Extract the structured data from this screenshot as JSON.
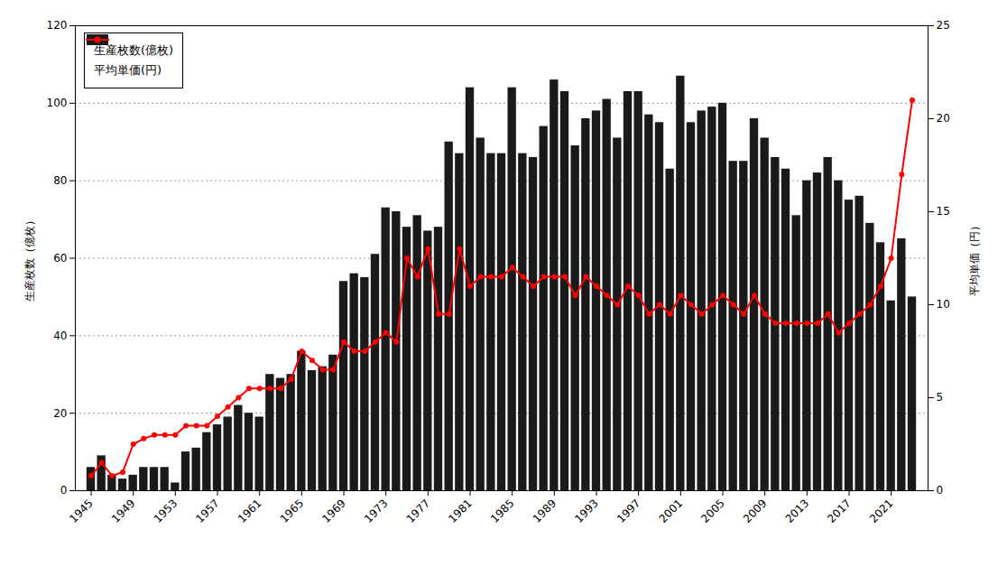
{
  "chart_data": {
    "type": "bar",
    "x": [
      1945,
      1946,
      1947,
      1948,
      1949,
      1950,
      1951,
      1952,
      1953,
      1954,
      1955,
      1956,
      1957,
      1958,
      1959,
      1960,
      1961,
      1962,
      1963,
      1964,
      1965,
      1966,
      1967,
      1968,
      1969,
      1970,
      1971,
      1972,
      1973,
      1974,
      1975,
      1976,
      1977,
      1978,
      1979,
      1980,
      1981,
      1982,
      1983,
      1984,
      1985,
      1986,
      1987,
      1988,
      1989,
      1990,
      1991,
      1992,
      1993,
      1994,
      1995,
      1996,
      1997,
      1998,
      1999,
      2000,
      2001,
      2002,
      2003,
      2004,
      2005,
      2006,
      2007,
      2008,
      2009,
      2010,
      2011,
      2012,
      2013,
      2014,
      2015,
      2016,
      2017,
      2018,
      2019,
      2020,
      2021,
      2022,
      2023
    ],
    "series": [
      {
        "name": "生産枚数(億枚)",
        "type": "bar",
        "color": "#1a1a1a",
        "values": [
          6,
          9,
          4,
          3,
          4,
          6,
          6,
          6,
          2,
          10,
          11,
          15,
          17,
          19,
          22,
          20,
          19,
          30,
          29,
          30,
          36,
          31,
          32,
          35,
          54,
          56,
          55,
          61,
          73,
          72,
          68,
          71,
          67,
          68,
          90,
          87,
          104,
          91,
          87,
          87,
          104,
          87,
          86,
          94,
          106,
          103,
          89,
          96,
          98,
          101,
          91,
          103,
          103,
          97,
          95,
          83,
          107,
          95,
          98,
          99,
          100,
          85,
          85,
          96,
          91,
          86,
          83,
          71,
          80,
          82,
          86,
          80,
          75,
          76,
          69,
          64,
          49,
          65,
          50
        ]
      },
      {
        "name": "平均単価(円)",
        "type": "line",
        "axis": "y2",
        "color": "#ff0000",
        "marker": "circle",
        "values": [
          0.8,
          1.5,
          0.8,
          1.0,
          2.5,
          2.8,
          3.0,
          3.0,
          3.0,
          3.5,
          3.5,
          3.5,
          4.0,
          4.5,
          5.0,
          5.5,
          5.5,
          5.5,
          5.5,
          6.0,
          7.5,
          7.0,
          6.5,
          6.5,
          8.0,
          7.5,
          7.5,
          8.0,
          8.5,
          8.0,
          12.5,
          11.5,
          13.0,
          9.5,
          9.5,
          13.0,
          11.0,
          11.5,
          11.5,
          11.5,
          12.0,
          11.5,
          11.0,
          11.5,
          11.5,
          11.5,
          10.5,
          11.5,
          11.0,
          10.5,
          10.0,
          11.0,
          10.5,
          9.5,
          10.0,
          9.5,
          10.5,
          10.0,
          9.5,
          10.0,
          10.5,
          10.0,
          9.5,
          10.5,
          9.5,
          9.0,
          9.0,
          9.0,
          9.0,
          9.0,
          9.5,
          8.5,
          9.0,
          9.5,
          10.0,
          11.0,
          12.5,
          17.0,
          21.0
        ]
      }
    ],
    "ylabel": "生産枚数（億枚）",
    "y2label": "平均単価（円）",
    "xlim": [
      1943.5,
      2024.5
    ],
    "xticks": [
      1945,
      1949,
      1953,
      1957,
      1961,
      1965,
      1969,
      1973,
      1977,
      1981,
      1985,
      1989,
      1993,
      1997,
      2001,
      2005,
      2009,
      2013,
      2017,
      2021
    ],
    "ylim": [
      0,
      120
    ],
    "yticks": [
      0,
      20,
      40,
      60,
      80,
      100,
      120
    ],
    "y2lim": [
      0,
      25
    ],
    "y2ticks": [
      0,
      5,
      10,
      15,
      20,
      25
    ],
    "grid": true,
    "legend": "upper left"
  }
}
